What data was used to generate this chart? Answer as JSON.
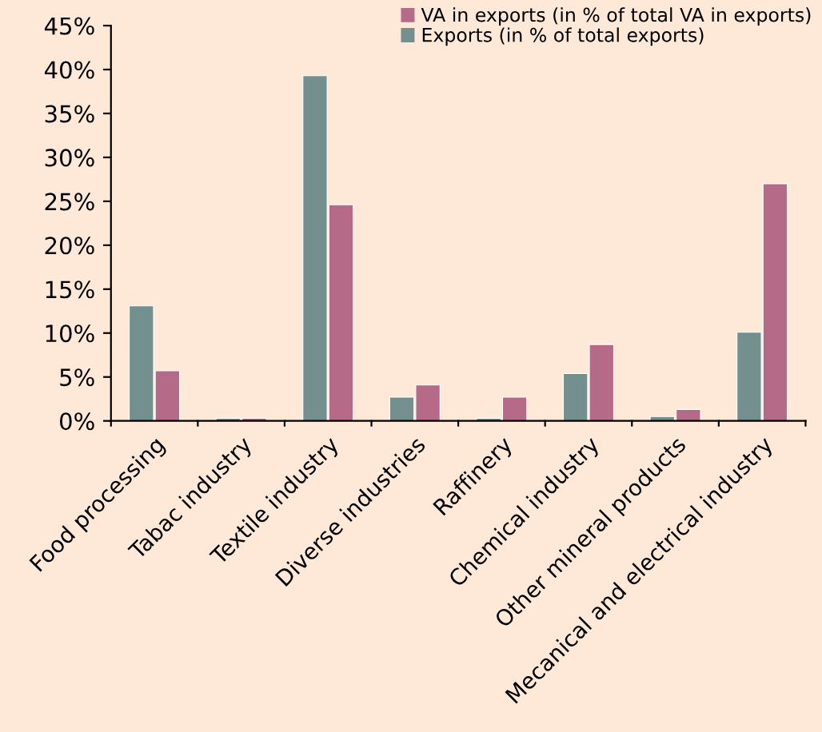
{
  "chart_data": {
    "type": "bar",
    "categories": [
      "Food processing",
      "Tabac industry",
      "Textile industry",
      "Diverse industries",
      "Raffinery",
      "Chemical industry",
      "Other mineral products",
      "Mecanical and electrical industry"
    ],
    "series": [
      {
        "name": "Exports (in % of total exports)",
        "color": "#73908f",
        "values": [
          13.1,
          0.3,
          39.3,
          2.7,
          0.3,
          5.4,
          0.5,
          10.1
        ]
      },
      {
        "name": "VA in exports (in % of total VA in exports)",
        "color": "#b56b88",
        "values": [
          5.7,
          0.3,
          24.6,
          4.1,
          2.7,
          8.7,
          1.3,
          27.0
        ]
      }
    ],
    "ylim": [
      0,
      45
    ],
    "yticks": [
      {
        "value": 0,
        "label": "0%"
      },
      {
        "value": 5,
        "label": "5%"
      },
      {
        "value": 10,
        "label": "10%"
      },
      {
        "value": 15,
        "label": "15%"
      },
      {
        "value": 20,
        "label": "20%"
      },
      {
        "value": 25,
        "label": "25%"
      },
      {
        "value": 30,
        "label": "30%"
      },
      {
        "value": 35,
        "label": "35%"
      },
      {
        "value": 40,
        "label": "40%"
      },
      {
        "value": 45,
        "label": "45%"
      }
    ],
    "grid": false,
    "legend": "top right"
  }
}
